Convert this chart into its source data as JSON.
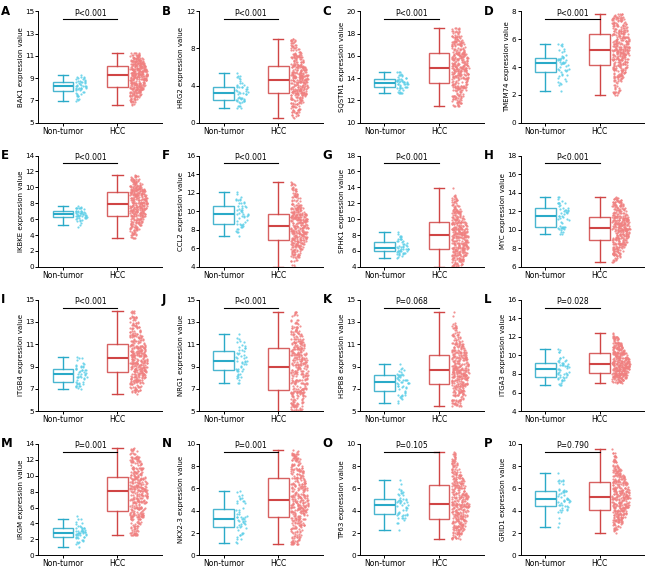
{
  "panels": [
    {
      "label": "A",
      "gene": "BAK1",
      "ylabel": "BAK1 expression value",
      "pval": "P<0.001",
      "ylim": [
        5,
        15
      ],
      "yticks": [
        5,
        7,
        9,
        11,
        13,
        15
      ],
      "nt": {
        "med": 8.5,
        "q1": 7.8,
        "q3": 8.9,
        "lo": 6.8,
        "hi": 9.3,
        "n": 50
      },
      "hcc": {
        "med": 9.3,
        "q1": 8.1,
        "q3": 10.3,
        "lo": 6.5,
        "hi": 11.3,
        "n": 370
      }
    },
    {
      "label": "B",
      "gene": "HRG2",
      "ylabel": "HRG2 expression value",
      "pval": "P<0.001",
      "ylim": [
        0,
        12
      ],
      "yticks": [
        0,
        4,
        8,
        12
      ],
      "nt": {
        "med": 3.3,
        "q1": 2.5,
        "q3": 4.0,
        "lo": 1.0,
        "hi": 5.5,
        "n": 50
      },
      "hcc": {
        "med": 4.5,
        "q1": 3.0,
        "q3": 6.5,
        "lo": 0.5,
        "hi": 9.0,
        "n": 370
      }
    },
    {
      "label": "C",
      "gene": "SQSTM1",
      "ylabel": "SQSTM1 expression value",
      "pval": "P<0.001",
      "ylim": [
        10,
        20
      ],
      "yticks": [
        10,
        12,
        14,
        16,
        18,
        20
      ],
      "nt": {
        "med": 13.5,
        "q1": 13.1,
        "q3": 13.9,
        "lo": 12.5,
        "hi": 15.0,
        "n": 50
      },
      "hcc": {
        "med": 14.8,
        "q1": 13.0,
        "q3": 16.5,
        "lo": 11.5,
        "hi": 18.5,
        "n": 370
      }
    },
    {
      "label": "D",
      "gene": "TMEM74",
      "ylabel": "TMEM74 expression value",
      "pval": "P<0.001",
      "ylim": [
        0,
        8
      ],
      "yticks": [
        0,
        2,
        4,
        6,
        8
      ],
      "nt": {
        "med": 4.0,
        "q1": 3.3,
        "q3": 4.7,
        "lo": 2.2,
        "hi": 5.8,
        "n": 50
      },
      "hcc": {
        "med": 5.5,
        "q1": 3.8,
        "q3": 6.8,
        "lo": 2.0,
        "hi": 7.8,
        "n": 370
      }
    },
    {
      "label": "E",
      "gene": "IKBKE",
      "ylabel": "IKBKE expression value",
      "pval": "P<0.001",
      "ylim": [
        0,
        14
      ],
      "yticks": [
        0,
        2,
        4,
        6,
        8,
        10,
        12,
        14
      ],
      "nt": {
        "med": 6.5,
        "q1": 5.9,
        "q3": 7.1,
        "lo": 5.0,
        "hi": 8.0,
        "n": 50
      },
      "hcc": {
        "med": 8.0,
        "q1": 6.0,
        "q3": 9.5,
        "lo": 3.5,
        "hi": 11.5,
        "n": 370
      }
    },
    {
      "label": "F",
      "gene": "CCL2",
      "ylabel": "CCL2 expression value",
      "pval": "P<0.001",
      "ylim": [
        4,
        16
      ],
      "yticks": [
        4,
        6,
        8,
        10,
        12,
        14,
        16
      ],
      "nt": {
        "med": 9.8,
        "q1": 8.8,
        "q3": 10.7,
        "lo": 7.0,
        "hi": 13.0,
        "n": 50
      },
      "hcc": {
        "med": 8.3,
        "q1": 6.2,
        "q3": 9.5,
        "lo": 4.0,
        "hi": 13.5,
        "n": 370
      }
    },
    {
      "label": "G",
      "gene": "SPHK1",
      "ylabel": "SPHK1 expression value",
      "pval": "P<0.001",
      "ylim": [
        4,
        18
      ],
      "yticks": [
        4,
        6,
        8,
        10,
        12,
        14,
        16,
        18
      ],
      "nt": {
        "med": 6.5,
        "q1": 5.9,
        "q3": 7.1,
        "lo": 5.0,
        "hi": 9.0,
        "n": 50
      },
      "hcc": {
        "med": 7.5,
        "q1": 5.5,
        "q3": 9.5,
        "lo": 4.0,
        "hi": 14.0,
        "n": 370
      }
    },
    {
      "label": "H",
      "gene": "MYC",
      "ylabel": "MYC expression value",
      "pval": "P<0.001",
      "ylim": [
        6,
        18
      ],
      "yticks": [
        6,
        8,
        10,
        12,
        14,
        16,
        18
      ],
      "nt": {
        "med": 11.5,
        "q1": 10.5,
        "q3": 12.3,
        "lo": 9.0,
        "hi": 13.5,
        "n": 50
      },
      "hcc": {
        "med": 10.3,
        "q1": 8.3,
        "q3": 11.5,
        "lo": 6.5,
        "hi": 13.5,
        "n": 370
      }
    },
    {
      "label": "I",
      "gene": "ITGB4",
      "ylabel": "ITGB4 expression value",
      "pval": "P<0.001",
      "ylim": [
        5,
        15
      ],
      "yticks": [
        5,
        7,
        9,
        11,
        13,
        15
      ],
      "nt": {
        "med": 8.5,
        "q1": 7.8,
        "q3": 9.3,
        "lo": 7.0,
        "hi": 10.5,
        "n": 50
      },
      "hcc": {
        "med": 9.5,
        "q1": 7.8,
        "q3": 11.2,
        "lo": 6.5,
        "hi": 14.0,
        "n": 370
      }
    },
    {
      "label": "J",
      "gene": "NRG1",
      "ylabel": "NRG1 expression value",
      "pval": "P<0.001",
      "ylim": [
        5,
        15
      ],
      "yticks": [
        5,
        7,
        9,
        11,
        13,
        15
      ],
      "nt": {
        "med": 10.0,
        "q1": 9.0,
        "q3": 10.8,
        "lo": 7.5,
        "hi": 12.0,
        "n": 50
      },
      "hcc": {
        "med": 8.5,
        "q1": 6.0,
        "q3": 10.5,
        "lo": 4.5,
        "hi": 14.0,
        "n": 370
      }
    },
    {
      "label": "K",
      "gene": "HSPB8",
      "ylabel": "HSPB8 expression value",
      "pval": "P=0.068",
      "ylim": [
        5,
        15
      ],
      "yticks": [
        5,
        7,
        9,
        11,
        13,
        15
      ],
      "nt": {
        "med": 7.5,
        "q1": 6.8,
        "q3": 8.3,
        "lo": 5.5,
        "hi": 9.5,
        "n": 50
      },
      "hcc": {
        "med": 8.5,
        "q1": 7.0,
        "q3": 10.5,
        "lo": 5.5,
        "hi": 14.0,
        "n": 370
      }
    },
    {
      "label": "L",
      "gene": "ITGA3",
      "ylabel": "ITGA3 expression value",
      "pval": "P=0.028",
      "ylim": [
        4,
        16
      ],
      "yticks": [
        4,
        6,
        8,
        10,
        12,
        14,
        16
      ],
      "nt": {
        "med": 8.5,
        "q1": 7.8,
        "q3": 9.3,
        "lo": 6.5,
        "hi": 11.0,
        "n": 50
      },
      "hcc": {
        "med": 9.0,
        "q1": 7.8,
        "q3": 10.3,
        "lo": 7.0,
        "hi": 12.5,
        "n": 370
      }
    },
    {
      "label": "M",
      "gene": "IRGM",
      "ylabel": "IRGM expression value",
      "pval": "P=0.001",
      "ylim": [
        0,
        14
      ],
      "yticks": [
        0,
        2,
        4,
        6,
        8,
        10,
        12,
        14
      ],
      "nt": {
        "med": 3.0,
        "q1": 2.2,
        "q3": 3.8,
        "lo": 1.0,
        "hi": 5.0,
        "n": 50
      },
      "hcc": {
        "med": 8.0,
        "q1": 5.5,
        "q3": 10.5,
        "lo": 2.5,
        "hi": 13.5,
        "n": 370
      }
    },
    {
      "label": "N",
      "gene": "NKX2-3",
      "ylabel": "NKX2-3 expression value",
      "pval": "P=0.001",
      "ylim": [
        0,
        10
      ],
      "yticks": [
        0,
        2,
        4,
        6,
        8,
        10
      ],
      "nt": {
        "med": 3.5,
        "q1": 2.5,
        "q3": 4.5,
        "lo": 1.0,
        "hi": 6.0,
        "n": 50
      },
      "hcc": {
        "med": 5.0,
        "q1": 3.0,
        "q3": 7.0,
        "lo": 1.0,
        "hi": 9.5,
        "n": 370
      }
    },
    {
      "label": "O",
      "gene": "TP63",
      "ylabel": "TP63 expression value",
      "pval": "P=0.105",
      "ylim": [
        0,
        10
      ],
      "yticks": [
        0,
        2,
        4,
        6,
        8,
        10
      ],
      "nt": {
        "med": 4.5,
        "q1": 3.5,
        "q3": 5.3,
        "lo": 2.0,
        "hi": 7.0,
        "n": 50
      },
      "hcc": {
        "med": 4.5,
        "q1": 2.8,
        "q3": 6.0,
        "lo": 1.5,
        "hi": 9.5,
        "n": 370
      }
    },
    {
      "label": "P",
      "gene": "GRID1",
      "ylabel": "GRID1 expression value",
      "pval": "P=0.790",
      "ylim": [
        0,
        10
      ],
      "yticks": [
        0,
        2,
        4,
        6,
        8,
        10
      ],
      "nt": {
        "med": 5.0,
        "q1": 4.2,
        "q3": 6.0,
        "lo": 2.5,
        "hi": 7.5,
        "n": 50
      },
      "hcc": {
        "med": 5.2,
        "q1": 3.8,
        "q3": 6.5,
        "lo": 2.0,
        "hi": 9.5,
        "n": 370
      }
    }
  ],
  "cyan_face": "#5ECFE8",
  "cyan_edge": "#2AAAC8",
  "red_face": "#F08080",
  "red_edge": "#D04545",
  "bg": "#FFFFFF"
}
